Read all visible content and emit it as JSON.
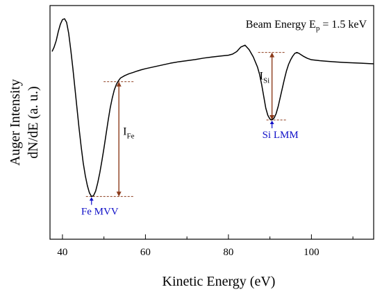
{
  "chart_data": {
    "type": "line",
    "title": "",
    "xlabel": "Kinetic Energy (eV)",
    "ylabel": [
      "Auger Intensity",
      "dN/dE (a. u.)"
    ],
    "xlim": [
      37,
      115
    ],
    "ylim": [
      0,
      100
    ],
    "x_ticks": [
      40,
      60,
      80,
      100
    ],
    "x_tick_labels": [
      "40",
      "60",
      "80",
      "100"
    ],
    "y_ticks_shown": false,
    "grid": false,
    "annotation": {
      "text": "Beam Energy E",
      "sub": "p",
      "rest": " = 1.5 keV"
    },
    "series": [
      {
        "color": "#000000",
        "x": [
          37.5,
          38.0,
          38.5,
          39.0,
          39.5,
          40.0,
          40.5,
          41.0,
          41.5,
          42.0,
          42.5,
          43.0,
          43.5,
          44.0,
          44.5,
          45.0,
          45.5,
          46.0,
          46.5,
          47.0,
          47.5,
          48.0,
          48.5,
          49.0,
          49.5,
          50.0,
          50.5,
          51.0,
          51.5,
          52.0,
          52.5,
          53.0,
          53.5,
          54.0,
          55.0,
          56.0,
          57.0,
          58.0,
          59.0,
          60.0,
          62.0,
          64.0,
          66.0,
          68.0,
          70.0,
          72.0,
          74.0,
          76.0,
          78.0,
          80.0,
          81.0,
          82.0,
          83.0,
          84.0,
          85.0,
          86.0,
          87.0,
          87.5,
          88.0,
          88.5,
          89.0,
          89.5,
          90.0,
          90.5,
          91.0,
          91.5,
          92.0,
          92.5,
          93.0,
          93.5,
          94.0,
          94.5,
          95.0,
          95.5,
          96.0,
          96.5,
          97.0,
          98.0,
          99.0,
          100.0,
          102.0,
          104.0,
          106.0,
          108.0,
          110.0,
          112.0,
          114.0,
          115.0
        ],
        "y": [
          82.0,
          84.5,
          88.0,
          93.0,
          97.0,
          99.5,
          100.0,
          98.0,
          92.0,
          83.0,
          73.0,
          62.0,
          51.0,
          40.0,
          30.0,
          21.0,
          14.0,
          8.5,
          4.5,
          2.5,
          3.0,
          5.5,
          10.0,
          15.5,
          22.0,
          29.0,
          36.5,
          44.0,
          51.0,
          56.5,
          61.0,
          64.0,
          66.0,
          67.5,
          68.8,
          69.8,
          70.5,
          71.3,
          72.0,
          72.6,
          73.6,
          74.6,
          75.6,
          76.4,
          77.0,
          77.6,
          78.4,
          79.0,
          79.5,
          80.0,
          80.6,
          82.0,
          84.5,
          85.5,
          83.0,
          79.0,
          73.5,
          69.5,
          64.0,
          57.5,
          51.0,
          47.0,
          45.0,
          44.5,
          45.5,
          48.0,
          52.0,
          57.0,
          62.0,
          67.0,
          71.5,
          75.0,
          77.5,
          79.5,
          81.0,
          81.5,
          81.0,
          79.5,
          78.3,
          77.5,
          77.0,
          76.6,
          76.3,
          76.0,
          75.8,
          75.6,
          75.4,
          75.3
        ]
      }
    ],
    "peaks": [
      {
        "label": "Fe MVV",
        "x": 47.0,
        "y": 2.5,
        "top_y": 65.5,
        "intensity_label": "I",
        "intensity_sub": "Fe"
      },
      {
        "label": "Si LMM",
        "x": 90.5,
        "y": 44.5,
        "top_y": 81.5,
        "intensity_label": "I",
        "intensity_sub": "Si"
      }
    ],
    "colors": {
      "line": "#000000",
      "marker": "#8B3A1A",
      "peak_label": "#1010C8",
      "arrow": "#1010C8"
    }
  }
}
